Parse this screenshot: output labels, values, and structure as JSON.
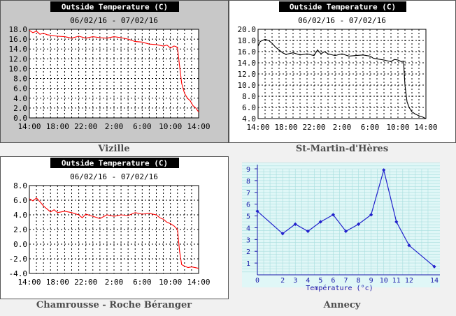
{
  "captions": [
    "Vizille",
    "St-Martin-d'Hères",
    "Chamrousse - Roche Béranger",
    "Annecy"
  ],
  "chart_data": [
    {
      "type": "line",
      "title": "Outside Temperature (C)",
      "subtitle": "06/02/16 - 07/02/16",
      "station": "Vizille",
      "x_ticks": [
        "14:00",
        "18:00",
        "22:00",
        "2:00",
        "6:00",
        "10:00",
        "14:00"
      ],
      "xlim": [
        0,
        24
      ],
      "y_ticks": [
        "18.0",
        "16.0",
        "14.0",
        "12.0",
        "10.0",
        "8.0",
        "6.0",
        "4.0",
        "2.0",
        "0.0"
      ],
      "ylim": [
        0,
        18
      ],
      "grid": true,
      "background": "gray",
      "series": [
        {
          "color": "#ff0000",
          "x": [
            0,
            0.5,
            1,
            1.5,
            2,
            2.5,
            3,
            4,
            5,
            6,
            7,
            8,
            9,
            10,
            11,
            12,
            13,
            14,
            15,
            16,
            16.5,
            17,
            18,
            19,
            19.5,
            20,
            20.5,
            20.8,
            21,
            21.3,
            21.6,
            22,
            22.4,
            22.8,
            23.2,
            23.6,
            24
          ],
          "y": [
            17.8,
            17.3,
            17.6,
            17.0,
            17.2,
            16.9,
            16.8,
            16.6,
            16.5,
            16.2,
            16.6,
            16.2,
            16.5,
            16.3,
            16.2,
            16.5,
            16.3,
            16.0,
            15.5,
            15.4,
            15.2,
            15.0,
            14.9,
            14.6,
            14.8,
            14.2,
            14.6,
            14.5,
            14.2,
            10.5,
            7.0,
            5.0,
            4.0,
            3.5,
            2.5,
            2.0,
            1.2
          ]
        }
      ]
    },
    {
      "type": "line",
      "title": "Outside Temperature (C)",
      "subtitle": "06/02/16 - 07/02/16",
      "station": "St-Martin-d'Hères",
      "x_ticks": [
        "14:00",
        "18:00",
        "22:00",
        "2:00",
        "6:00",
        "10:00",
        "14:00"
      ],
      "xlim": [
        0,
        24
      ],
      "y_ticks": [
        "20.0",
        "18.0",
        "16.0",
        "14.0",
        "12.0",
        "10.0",
        "8.0",
        "6.0",
        "4.0"
      ],
      "ylim": [
        4,
        20
      ],
      "grid": true,
      "background": "white",
      "series": [
        {
          "color": "#000000",
          "x": [
            0,
            0.3,
            0.6,
            1,
            1.5,
            2,
            2.5,
            3,
            3.5,
            4,
            5,
            6,
            7,
            8,
            8.5,
            9,
            9.5,
            10,
            11,
            12,
            13,
            14,
            15,
            16,
            16.5,
            17,
            18,
            19,
            19.5,
            20,
            20.5,
            20.8,
            21,
            21.3,
            21.6,
            22,
            22.5,
            23,
            23.5,
            24
          ],
          "y": [
            17.0,
            17.8,
            18.0,
            18.2,
            18.0,
            17.5,
            16.8,
            16.3,
            15.8,
            15.5,
            15.8,
            15.4,
            15.6,
            15.3,
            16.3,
            15.6,
            16.0,
            15.6,
            15.3,
            15.6,
            15.2,
            15.3,
            15.4,
            15.2,
            14.8,
            14.7,
            14.5,
            14.2,
            14.6,
            14.5,
            14.2,
            14.3,
            10.0,
            7.0,
            6.0,
            5.2,
            4.8,
            4.5,
            4.3,
            4.0
          ]
        }
      ]
    },
    {
      "type": "line",
      "title": "Outside Temperature (C)",
      "subtitle": "06/02/16 - 07/02/16",
      "station": "Chamrousse - Roche Béranger",
      "x_ticks": [
        "14:00",
        "18:00",
        "22:00",
        "2:00",
        "6:00",
        "10:00",
        "14:00"
      ],
      "xlim": [
        0,
        24
      ],
      "y_ticks": [
        "8.0",
        "6.0",
        "4.0",
        "2.0",
        "0.0",
        "-2.0",
        "-4.0"
      ],
      "ylim": [
        -4,
        8
      ],
      "grid": true,
      "background": "white",
      "series": [
        {
          "color": "#ff0000",
          "x": [
            0,
            0.5,
            1,
            1.5,
            2,
            2.5,
            3,
            3.5,
            4,
            5,
            6,
            7,
            7.5,
            8,
            9,
            10,
            11,
            12,
            13,
            14,
            15,
            16,
            17,
            18,
            18.5,
            19,
            19.5,
            20,
            20.5,
            21,
            21.3,
            21.6,
            22,
            22.5,
            23,
            23.5,
            24
          ],
          "y": [
            6.2,
            5.9,
            6.3,
            5.8,
            5.2,
            4.8,
            4.4,
            4.7,
            4.3,
            4.5,
            4.3,
            4.0,
            3.6,
            4.1,
            3.8,
            3.5,
            4.0,
            3.8,
            4.0,
            3.9,
            4.3,
            4.1,
            4.2,
            4.0,
            3.6,
            3.4,
            3.0,
            2.8,
            2.5,
            2.0,
            -1.0,
            -2.8,
            -3.0,
            -3.2,
            -3.1,
            -3.2,
            -3.3
          ]
        }
      ]
    },
    {
      "type": "line",
      "station": "Annecy",
      "xlabel": "Température (°c)",
      "x_ticks": [
        0,
        2,
        3,
        4,
        5,
        6,
        7,
        8,
        9,
        10,
        11,
        12,
        14
      ],
      "xlim": [
        0,
        14
      ],
      "y_ticks": [
        1,
        2,
        3,
        4,
        5,
        6,
        7,
        8,
        9
      ],
      "ylim": [
        0,
        9
      ],
      "grid": true,
      "background": "#e0f7f7",
      "series": [
        {
          "color": "#2222cc",
          "x": [
            0,
            2,
            3,
            4,
            5,
            6,
            7,
            8,
            9,
            10,
            11,
            12,
            14
          ],
          "y": [
            5.4,
            3.5,
            4.3,
            3.7,
            4.5,
            5.1,
            3.7,
            4.3,
            5.1,
            8.9,
            4.5,
            2.5,
            0.7
          ]
        }
      ]
    }
  ]
}
